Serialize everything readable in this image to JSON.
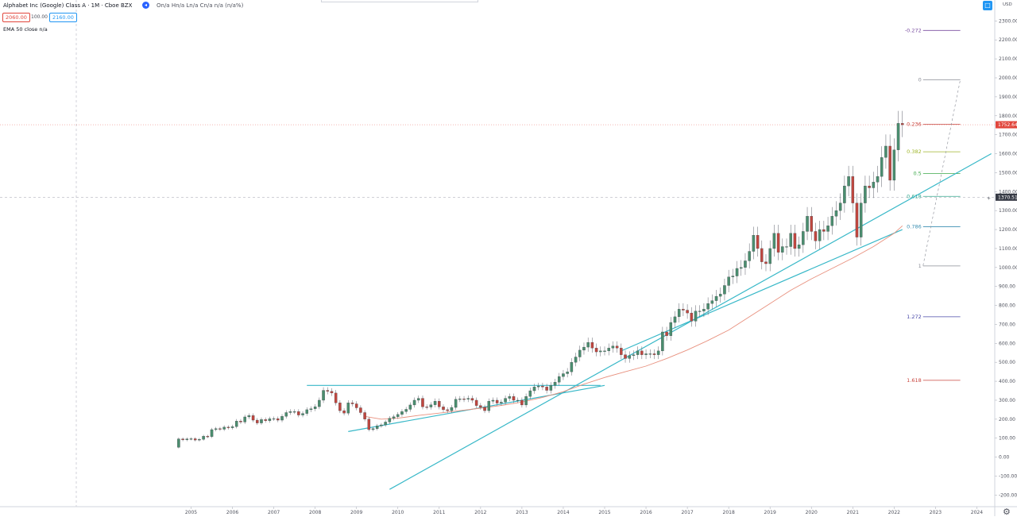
{
  "header": {
    "symbol": "Alphabet Inc (Google) Class A · 1M · Cboe BZX",
    "ohlc": "On/a  Hn/a  Ln/a  Cn/a  n/a (n/a%)",
    "bid": "2060.00",
    "spread": "100.00",
    "ask": "2160.00",
    "indicator": "EMA 50 close",
    "indicator_value": "n/a"
  },
  "axis": {
    "currency": "USD",
    "last_price_label": "1752.64",
    "crosshair_price_label": "1370.51",
    "price_ticks": [
      "2300.00",
      "2200.00",
      "2100.00",
      "2000.00",
      "1900.00",
      "1800.00",
      "1700.00",
      "1600.00",
      "1500.00",
      "1400.00",
      "1300.00",
      "1200.00",
      "1100.00",
      "1000.00",
      "900.00",
      "800.00",
      "700.00",
      "600.00",
      "500.00",
      "400.00",
      "300.00",
      "200.00",
      "100.00",
      "0.00",
      "-100.00",
      "-200.00"
    ],
    "year_ticks": [
      "2005",
      "2006",
      "2007",
      "2008",
      "2009",
      "2010",
      "2011",
      "2012",
      "2013",
      "2014",
      "2015",
      "2016",
      "2017",
      "2018",
      "2019",
      "2020",
      "2021",
      "2022",
      "2023",
      "2024"
    ]
  },
  "icons": {
    "settings": "gear-icon",
    "chart_settings": "square-icon",
    "collapse": "chevron-left-icon"
  },
  "chart_data": {
    "type": "candlestick",
    "interval": "1M",
    "xlim": [
      2004.0,
      2024.35
    ],
    "ylim": [
      -260,
      2320
    ],
    "last_price": 1752.64,
    "crosshair_price": 1370.51,
    "colors": {
      "up": "#4a8e6f",
      "down": "#c0463f",
      "ema": "#e8907e",
      "trendline": "#38b8c8",
      "last": "#e1463c"
    },
    "closes": [
      [
        2004.6,
        52
      ],
      [
        2004.7,
        96
      ],
      [
        2004.8,
        91
      ],
      [
        2004.9,
        96
      ],
      [
        2005.0,
        97
      ],
      [
        2005.1,
        90
      ],
      [
        2005.2,
        94
      ],
      [
        2005.3,
        110
      ],
      [
        2005.4,
        108
      ],
      [
        2005.5,
        145
      ],
      [
        2005.6,
        150
      ],
      [
        2005.7,
        147
      ],
      [
        2005.8,
        158
      ],
      [
        2005.9,
        155
      ],
      [
        2006.0,
        161
      ],
      [
        2006.1,
        190
      ],
      [
        2006.2,
        185
      ],
      [
        2006.3,
        212
      ],
      [
        2006.4,
        219
      ],
      [
        2006.5,
        195
      ],
      [
        2006.6,
        180
      ],
      [
        2006.7,
        198
      ],
      [
        2006.8,
        192
      ],
      [
        2006.9,
        202
      ],
      [
        2007.0,
        203
      ],
      [
        2007.1,
        195
      ],
      [
        2007.2,
        215
      ],
      [
        2007.3,
        235
      ],
      [
        2007.4,
        240
      ],
      [
        2007.5,
        240
      ],
      [
        2007.6,
        222
      ],
      [
        2007.7,
        230
      ],
      [
        2007.8,
        250
      ],
      [
        2007.9,
        255
      ],
      [
        2008.0,
        266
      ],
      [
        2008.1,
        300
      ],
      [
        2008.2,
        352
      ],
      [
        2008.3,
        347
      ],
      [
        2008.4,
        338
      ],
      [
        2008.5,
        286
      ],
      [
        2008.6,
        245
      ],
      [
        2008.7,
        232
      ],
      [
        2008.8,
        286
      ],
      [
        2008.9,
        281
      ],
      [
        2009.0,
        260
      ],
      [
        2009.1,
        235
      ],
      [
        2009.2,
        200
      ],
      [
        2009.3,
        145
      ],
      [
        2009.4,
        150
      ],
      [
        2009.5,
        165
      ],
      [
        2009.6,
        170
      ],
      [
        2009.7,
        185
      ],
      [
        2009.8,
        205
      ],
      [
        2009.9,
        213
      ],
      [
        2010.0,
        225
      ],
      [
        2010.1,
        240
      ],
      [
        2010.2,
        252
      ],
      [
        2010.3,
        275
      ],
      [
        2010.4,
        300
      ],
      [
        2010.5,
        310
      ],
      [
        2010.6,
        265
      ],
      [
        2010.7,
        264
      ],
      [
        2010.8,
        276
      ],
      [
        2010.9,
        295
      ],
      [
        2011.0,
        265
      ],
      [
        2011.1,
        250
      ],
      [
        2011.2,
        245
      ],
      [
        2011.3,
        262
      ],
      [
        2011.4,
        305
      ],
      [
        2011.5,
        307
      ],
      [
        2011.6,
        305
      ],
      [
        2011.7,
        310
      ],
      [
        2011.8,
        300
      ],
      [
        2011.9,
        272
      ],
      [
        2012.0,
        263
      ],
      [
        2012.1,
        245
      ],
      [
        2012.2,
        295
      ],
      [
        2012.3,
        300
      ],
      [
        2012.4,
        285
      ],
      [
        2012.5,
        290
      ],
      [
        2012.6,
        310
      ],
      [
        2012.7,
        320
      ],
      [
        2012.8,
        300
      ],
      [
        2012.9,
        300
      ],
      [
        2013.0,
        275
      ],
      [
        2013.1,
        320
      ],
      [
        2013.2,
        350
      ],
      [
        2013.3,
        370
      ],
      [
        2013.4,
        375
      ],
      [
        2013.5,
        370
      ],
      [
        2013.6,
        352
      ],
      [
        2013.7,
        378
      ],
      [
        2013.8,
        395
      ],
      [
        2013.9,
        425
      ],
      [
        2014.0,
        440
      ],
      [
        2014.1,
        450
      ],
      [
        2014.2,
        500
      ],
      [
        2014.3,
        528
      ],
      [
        2014.4,
        564
      ],
      [
        2014.5,
        580
      ],
      [
        2014.6,
        605
      ],
      [
        2014.7,
        575
      ],
      [
        2014.8,
        555
      ],
      [
        2014.9,
        560
      ],
      [
        2015.0,
        560
      ],
      [
        2015.1,
        575
      ],
      [
        2015.2,
        586
      ],
      [
        2015.3,
        575
      ],
      [
        2015.4,
        540
      ],
      [
        2015.5,
        520
      ],
      [
        2015.6,
        535
      ],
      [
        2015.7,
        540
      ],
      [
        2015.8,
        560
      ],
      [
        2015.9,
        540
      ],
      [
        2016.0,
        545
      ],
      [
        2016.1,
        545
      ],
      [
        2016.2,
        540
      ],
      [
        2016.3,
        560
      ],
      [
        2016.4,
        660
      ],
      [
        2016.5,
        640
      ],
      [
        2016.6,
        710
      ],
      [
        2016.7,
        740
      ],
      [
        2016.8,
        780
      ],
      [
        2016.9,
        775
      ],
      [
        2017.0,
        760
      ],
      [
        2017.1,
        717
      ],
      [
        2017.2,
        770
      ],
      [
        2017.3,
        770
      ],
      [
        2017.4,
        780
      ],
      [
        2017.5,
        810
      ],
      [
        2017.6,
        825
      ],
      [
        2017.7,
        848
      ],
      [
        2017.8,
        860
      ],
      [
        2017.9,
        905
      ],
      [
        2018.0,
        950
      ],
      [
        2018.1,
        955
      ],
      [
        2018.2,
        995
      ],
      [
        2018.3,
        1000
      ],
      [
        2018.4,
        1035
      ],
      [
        2018.5,
        1085
      ],
      [
        2018.6,
        1170
      ],
      [
        2018.7,
        1100
      ],
      [
        2018.8,
        1030
      ],
      [
        2018.9,
        1020
      ],
      [
        2019.0,
        1100
      ],
      [
        2019.1,
        1180
      ],
      [
        2019.2,
        1080
      ],
      [
        2019.3,
        1110
      ],
      [
        2019.4,
        1110
      ],
      [
        2019.5,
        1180
      ],
      [
        2019.6,
        1100
      ],
      [
        2019.7,
        1120
      ],
      [
        2019.8,
        1190
      ],
      [
        2019.9,
        1270
      ],
      [
        2020.0,
        1190
      ],
      [
        2020.1,
        1140
      ],
      [
        2020.2,
        1200
      ],
      [
        2020.3,
        1190
      ],
      [
        2020.4,
        1220
      ],
      [
        2020.5,
        1270
      ],
      [
        2020.6,
        1300
      ],
      [
        2020.7,
        1340
      ],
      [
        2020.8,
        1430
      ],
      [
        2020.9,
        1480
      ],
      [
        2021.0,
        1340
      ],
      [
        2021.1,
        1160
      ],
      [
        2021.2,
        1340
      ],
      [
        2021.3,
        1430
      ],
      [
        2021.4,
        1420
      ],
      [
        2021.5,
        1450
      ],
      [
        2021.6,
        1480
      ],
      [
        2021.7,
        1580
      ],
      [
        2021.8,
        1640
      ],
      [
        2021.9,
        1460
      ],
      [
        2022.0,
        1620
      ],
      [
        2022.1,
        1760
      ],
      [
        2022.2,
        1752.64
      ]
    ],
    "ema50": [
      [
        2009.2,
        215
      ],
      [
        2009.6,
        200
      ],
      [
        2010.0,
        205
      ],
      [
        2010.5,
        220
      ],
      [
        2011.0,
        232
      ],
      [
        2011.5,
        245
      ],
      [
        2012.0,
        258
      ],
      [
        2012.5,
        272
      ],
      [
        2013.0,
        290
      ],
      [
        2013.5,
        315
      ],
      [
        2014.0,
        345
      ],
      [
        2014.5,
        385
      ],
      [
        2015.0,
        420
      ],
      [
        2015.5,
        450
      ],
      [
        2016.0,
        480
      ],
      [
        2016.5,
        520
      ],
      [
        2017.0,
        565
      ],
      [
        2017.5,
        615
      ],
      [
        2018.0,
        670
      ],
      [
        2018.5,
        740
      ],
      [
        2019.0,
        810
      ],
      [
        2019.5,
        880
      ],
      [
        2020.0,
        940
      ],
      [
        2020.5,
        995
      ],
      [
        2021.0,
        1050
      ],
      [
        2021.5,
        1110
      ],
      [
        2022.0,
        1180
      ],
      [
        2022.2,
        1220
      ]
    ],
    "trendlines": [
      {
        "name": "",
        "from": [
          2007.8,
          378
        ],
        "to": [
          2014.9,
          378
        ]
      },
      {
        "name": "",
        "from": [
          2008.8,
          135
        ],
        "to": [
          2015.0,
          378
        ]
      },
      {
        "name": "",
        "from": [
          2009.8,
          -170
        ],
        "to": [
          2024.35,
          1600
        ]
      },
      {
        "name": "",
        "from": [
          2015.4,
          560
        ],
        "to": [
          2022.2,
          1200
        ]
      }
    ],
    "fibonacci": {
      "line_from": [
        2022.7,
        1010
      ],
      "line_to": [
        2023.6,
        1990
      ],
      "levels": [
        {
          "label": "-0.272",
          "value": 2250,
          "color": "#7b4fa1"
        },
        {
          "label": "0",
          "value": 1990,
          "color": "#8a8d96"
        },
        {
          "label": "0.236",
          "value": 1755,
          "color": "#c9463f"
        },
        {
          "label": "0.382",
          "value": 1610,
          "color": "#9fb62a"
        },
        {
          "label": "0.5",
          "value": 1495,
          "color": "#3da84a"
        },
        {
          "label": "0.618",
          "value": 1375,
          "color": "#38a98f"
        },
        {
          "label": "0.786",
          "value": 1215,
          "color": "#3b8fb2"
        },
        {
          "label": "1",
          "value": 1008,
          "color": "#8a8d96"
        },
        {
          "label": "1.272",
          "value": 740,
          "color": "#4848a8"
        },
        {
          "label": "1.618",
          "value": 405,
          "color": "#c9463f"
        }
      ]
    }
  }
}
